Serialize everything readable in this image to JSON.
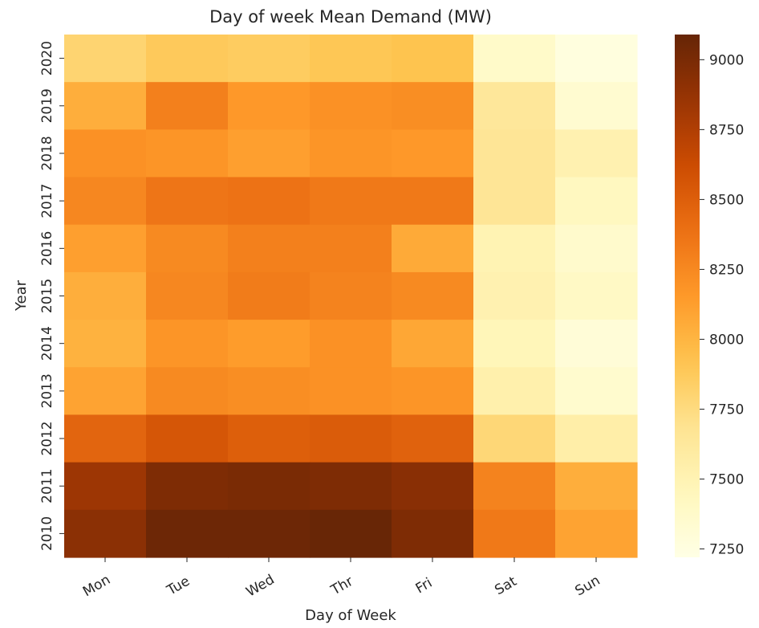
{
  "chart_data": {
    "type": "heatmap",
    "title": "Day of week Mean Demand (MW)",
    "xlabel": "Day of Week",
    "ylabel": "Year",
    "x_categories": [
      "Mon",
      "Tue",
      "Wed",
      "Thr",
      "Fri",
      "Sat",
      "Sun"
    ],
    "y_categories": [
      "2020",
      "2019",
      "2018",
      "2017",
      "2016",
      "2015",
      "2014",
      "2013",
      "2012",
      "2011",
      "2010"
    ],
    "values": [
      [
        7800,
        7880,
        7860,
        7900,
        7920,
        7380,
        7260
      ],
      [
        8040,
        8300,
        8160,
        8200,
        8220,
        7640,
        7340
      ],
      [
        8200,
        8180,
        8120,
        8180,
        8160,
        7660,
        7520
      ],
      [
        8260,
        8360,
        8380,
        8340,
        8340,
        7660,
        7430
      ],
      [
        8120,
        8240,
        8300,
        8300,
        8060,
        7500,
        7360
      ],
      [
        8040,
        8260,
        8320,
        8280,
        8240,
        7520,
        7400
      ],
      [
        8020,
        8180,
        8140,
        8200,
        8080,
        7470,
        7300
      ],
      [
        8100,
        8240,
        8220,
        8200,
        8180,
        7540,
        7350
      ],
      [
        8460,
        8560,
        8500,
        8520,
        8480,
        7780,
        7560
      ],
      [
        8840,
        8980,
        9000,
        8980,
        8930,
        8280,
        8040
      ],
      [
        8920,
        9060,
        9060,
        9080,
        8980,
        8340,
        8100
      ]
    ],
    "colorbar": {
      "min": 7220,
      "max": 9090,
      "ticks": [
        7250,
        7500,
        7750,
        8000,
        8250,
        8500,
        8750,
        9000
      ],
      "colormap": "YlOrBr"
    }
  }
}
